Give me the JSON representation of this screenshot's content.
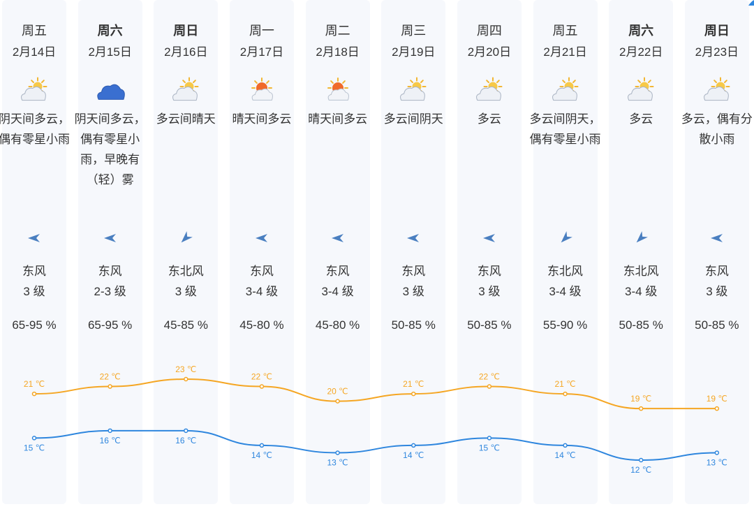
{
  "days": [
    {
      "day": "周五",
      "date": "2月14日",
      "bold": false,
      "icon": "partly-cloudy-icon",
      "desc": "阴天间多云，偶有零星小雨",
      "wind_icon": "wind-arrow-east-icon",
      "wind_dir": "东风",
      "wind_level": "3 级",
      "humidity": "65-95 %"
    },
    {
      "day": "周六",
      "date": "2月15日",
      "bold": true,
      "icon": "cloud-icon",
      "desc": "阴天间多云，偶有零星小雨，早晚有（轻）雾",
      "wind_icon": "wind-arrow-east-icon",
      "wind_dir": "东风",
      "wind_level": "2-3 级",
      "humidity": "65-95 %"
    },
    {
      "day": "周日",
      "date": "2月16日",
      "bold": true,
      "icon": "partly-cloudy-icon",
      "desc": "多云间晴天",
      "wind_icon": "wind-arrow-northeast-icon",
      "wind_dir": "东北风",
      "wind_level": "3 级",
      "humidity": "45-85 %"
    },
    {
      "day": "周一",
      "date": "2月17日",
      "bold": false,
      "icon": "sunny-cloudy-icon",
      "desc": "晴天间多云",
      "wind_icon": "wind-arrow-east-icon",
      "wind_dir": "东风",
      "wind_level": "3-4 级",
      "humidity": "45-80 %"
    },
    {
      "day": "周二",
      "date": "2月18日",
      "bold": false,
      "icon": "sunny-cloudy-icon",
      "desc": "晴天间多云",
      "wind_icon": "wind-arrow-east-icon",
      "wind_dir": "东风",
      "wind_level": "3-4 级",
      "humidity": "45-80 %"
    },
    {
      "day": "周三",
      "date": "2月19日",
      "bold": false,
      "icon": "partly-cloudy-icon",
      "desc": "多云间阴天",
      "wind_icon": "wind-arrow-east-icon",
      "wind_dir": "东风",
      "wind_level": "3 级",
      "humidity": "50-85 %"
    },
    {
      "day": "周四",
      "date": "2月20日",
      "bold": false,
      "icon": "partly-cloudy-icon",
      "desc": "多云",
      "wind_icon": "wind-arrow-east-icon",
      "wind_dir": "东风",
      "wind_level": "3 级",
      "humidity": "50-85 %"
    },
    {
      "day": "周五",
      "date": "2月21日",
      "bold": false,
      "icon": "partly-cloudy-icon",
      "desc": "多云间阴天，偶有零星小雨",
      "wind_icon": "wind-arrow-northeast-icon",
      "wind_dir": "东北风",
      "wind_level": "3-4 级",
      "humidity": "55-90 %"
    },
    {
      "day": "周六",
      "date": "2月22日",
      "bold": true,
      "icon": "partly-cloudy-icon",
      "desc": "多云",
      "wind_icon": "wind-arrow-northeast-icon",
      "wind_dir": "东北风",
      "wind_level": "3-4 级",
      "humidity": "50-85 %"
    },
    {
      "day": "周日",
      "date": "2月23日",
      "bold": true,
      "icon": "partly-cloudy-icon",
      "desc": "多云，偶有分散小雨",
      "wind_icon": "wind-arrow-east-icon",
      "wind_dir": "东风",
      "wind_level": "3 级",
      "humidity": "50-85 %"
    }
  ],
  "chart_data": {
    "type": "line",
    "categories": [
      "2月14日",
      "2月15日",
      "2月16日",
      "2月17日",
      "2月18日",
      "2月19日",
      "2月20日",
      "2月21日",
      "2月22日",
      "2月23日"
    ],
    "series": [
      {
        "values": [
          21,
          22,
          23,
          22,
          20,
          21,
          22,
          21,
          19,
          19
        ],
        "color": "#f5a623"
      },
      {
        "values": [
          15,
          16,
          16,
          14,
          13,
          14,
          15,
          14,
          12,
          13
        ],
        "color": "#2e86de"
      }
    ],
    "unit": "℃",
    "title": "",
    "xlabel": "",
    "ylabel": ""
  },
  "colors": {
    "high": "#f5a623",
    "low": "#2e86de",
    "column_bg": "#f6f8fc",
    "wind_arrow": "#4a7fc0",
    "corner": "#2e86de"
  }
}
